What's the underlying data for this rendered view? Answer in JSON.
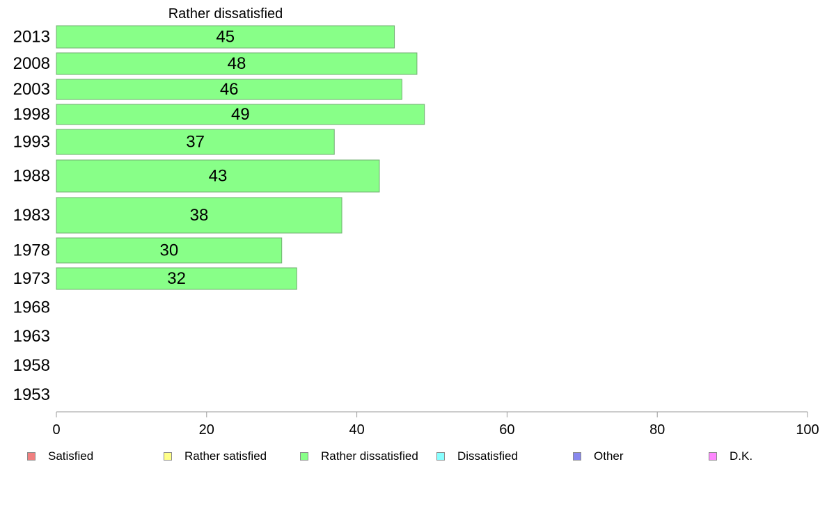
{
  "chart_data": {
    "type": "bar",
    "orientation": "horizontal",
    "title": "Rather dissatisfied",
    "categories": [
      "2013",
      "2008",
      "2003",
      "1998",
      "1993",
      "1988",
      "1983",
      "1978",
      "1973",
      "1968",
      "1963",
      "1958",
      "1953"
    ],
    "series": [
      {
        "name": "Rather dissatisfied",
        "values": [
          45,
          48,
          46,
          49,
          37,
          43,
          38,
          30,
          32,
          null,
          null,
          null,
          null
        ]
      }
    ],
    "xlim": [
      0,
      100
    ],
    "xticks": [
      0,
      20,
      40,
      60,
      80,
      100
    ],
    "grid": false,
    "legend_position": "bottom"
  },
  "colors": {
    "bar_fill": "#88ff88",
    "bar_stroke": "#6fae6f",
    "axis": "#999999"
  },
  "legend": [
    {
      "label": "Satisfied",
      "color": "#f08080"
    },
    {
      "label": "Rather satisfied",
      "color": "#ffff88"
    },
    {
      "label": "Rather dissatisfied",
      "color": "#88ff88"
    },
    {
      "label": "Dissatisfied",
      "color": "#88ffff"
    },
    {
      "label": "Other",
      "color": "#8888ee"
    },
    {
      "label": "D.K.",
      "color": "#ff88ff"
    }
  ]
}
